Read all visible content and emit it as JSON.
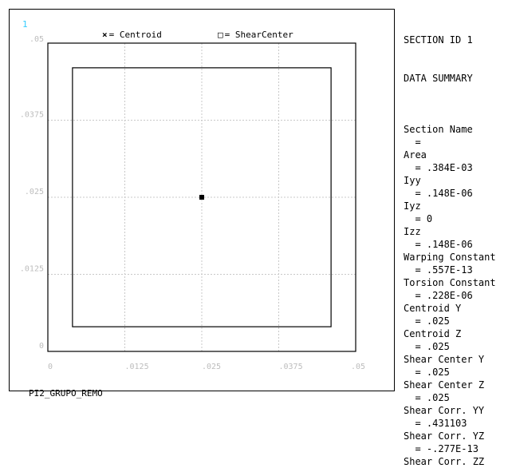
{
  "window_number": "1",
  "legend": {
    "centroid_symbol": "×",
    "centroid_label": "= Centroid",
    "shear_symbol": "□",
    "shear_label": "= ShearCenter"
  },
  "plot": {
    "x_ticks": [
      "0",
      ".0125",
      ".025",
      ".0375",
      ".05"
    ],
    "y_ticks": [
      ".05",
      ".0375",
      ".025",
      ".0125",
      "0"
    ],
    "outer_square": {
      "ymin": 0,
      "ymax": 0.05,
      "zmin": 0,
      "zmax": 0.05
    },
    "inner_square": {
      "ymin": 0.004,
      "ymax": 0.046,
      "zmin": 0.004,
      "zmax": 0.046
    },
    "centroid": {
      "y": 0.025,
      "z": 0.025
    },
    "grid_color": "#c8c8c8"
  },
  "model_name": "PI2_GRUPO_REMO",
  "summary": {
    "title1": "SECTION ID 1",
    "title2": "DATA SUMMARY",
    "lines": [
      "",
      "Section Name",
      "  =",
      "Area",
      "  = .384E-03",
      "Iyy",
      "  = .148E-06",
      "Iyz",
      "  = 0",
      "Izz",
      "  = .148E-06",
      "Warping Constant",
      "  = .557E-13",
      "Torsion Constant",
      "  = .228E-06",
      "Centroid Y",
      "  = .025",
      "Centroid Z",
      "  = .025",
      "Shear Center Y",
      "  = .025",
      "Shear Center Z",
      "  = .025",
      "Shear Corr. YY",
      "  = .431103",
      "Shear Corr. YZ",
      "  = -.277E-13",
      "Shear Corr. ZZ"
    ]
  }
}
